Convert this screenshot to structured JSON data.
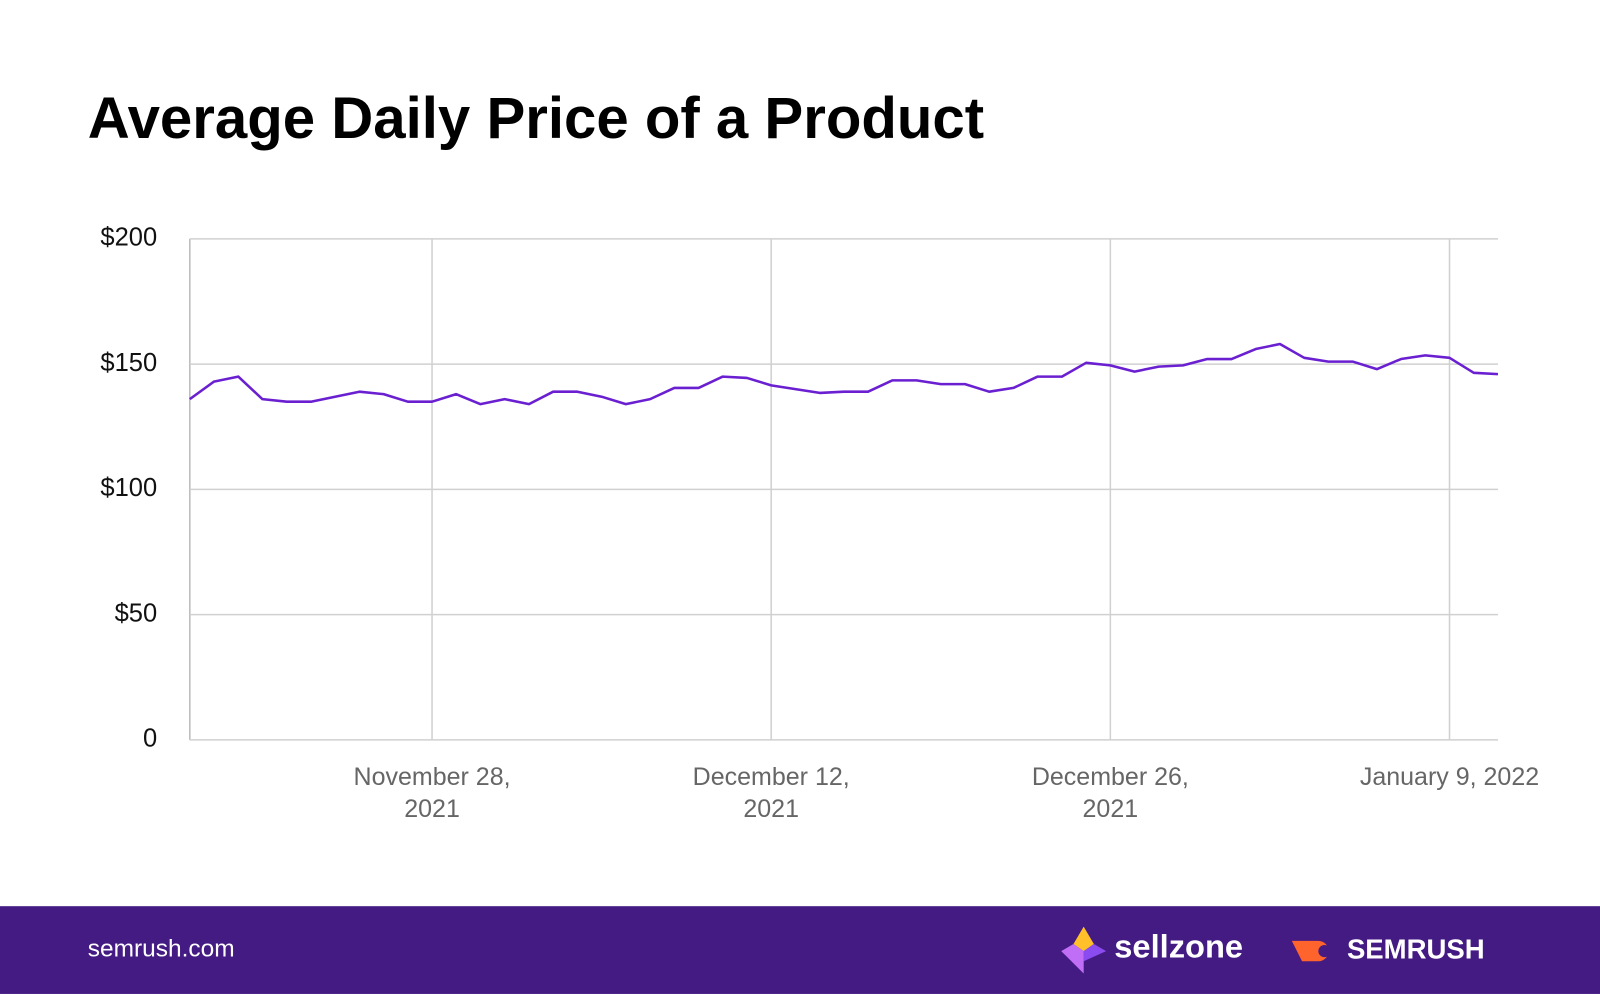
{
  "chart_data": {
    "type": "line",
    "title": "Average Daily Price of a Product",
    "x": [
      "2021-11-18",
      "2021-11-19",
      "2021-11-20",
      "2021-11-21",
      "2021-11-22",
      "2021-11-23",
      "2021-11-24",
      "2021-11-25",
      "2021-11-26",
      "2021-11-27",
      "2021-11-28",
      "2021-11-29",
      "2021-11-30",
      "2021-12-01",
      "2021-12-02",
      "2021-12-03",
      "2021-12-04",
      "2021-12-05",
      "2021-12-06",
      "2021-12-07",
      "2021-12-08",
      "2021-12-09",
      "2021-12-10",
      "2021-12-11",
      "2021-12-12",
      "2021-12-13",
      "2021-12-14",
      "2021-12-15",
      "2021-12-16",
      "2021-12-17",
      "2021-12-18",
      "2021-12-19",
      "2021-12-20",
      "2021-12-21",
      "2021-12-22",
      "2021-12-23",
      "2021-12-24",
      "2021-12-25",
      "2021-12-26",
      "2021-12-27",
      "2021-12-28",
      "2021-12-29",
      "2021-12-30",
      "2021-12-31",
      "2022-01-01",
      "2022-01-02",
      "2022-01-03",
      "2022-01-04",
      "2022-01-05",
      "2022-01-06",
      "2022-01-07",
      "2022-01-08",
      "2022-01-09",
      "2022-01-10",
      "2022-01-11"
    ],
    "series": [
      {
        "color": "#6a1fd1",
        "values": [
          136,
          143,
          145,
          136,
          135,
          135,
          137,
          139,
          138,
          135,
          135,
          138,
          134,
          136,
          134,
          139,
          139,
          137,
          134,
          136,
          140.5,
          140.5,
          145,
          144.5,
          141.5,
          140,
          138.5,
          139,
          139,
          143.5,
          143.5,
          142,
          142,
          139,
          140.5,
          145,
          145,
          150.5,
          149.5,
          147,
          149,
          149.5,
          152,
          152,
          156,
          158,
          152.5,
          151,
          151,
          148,
          152,
          153.5,
          152.5,
          146.5,
          146
        ]
      }
    ],
    "xlim": [
      "2021-11-18",
      "2022-01-11"
    ],
    "xticks": [
      {
        "value": "2021-11-28",
        "label": "November 28, 2021"
      },
      {
        "value": "2021-12-12",
        "label": "December 12, 2021"
      },
      {
        "value": "2021-12-26",
        "label": "December 26, 2021"
      },
      {
        "value": "2022-01-09",
        "label": "January 9, 2022"
      }
    ],
    "ylim": [
      0,
      200
    ],
    "yticks": [
      0,
      {
        "value": 50,
        "label": "$50"
      },
      {
        "value": 100,
        "label": "$100"
      },
      {
        "value": 150,
        "label": "$150"
      },
      {
        "value": 200,
        "label": "$200"
      }
    ],
    "grid": true
  },
  "footer": {
    "site": "semrush.com",
    "brand1": "sellzone",
    "brand2": "SEMRUSH"
  }
}
